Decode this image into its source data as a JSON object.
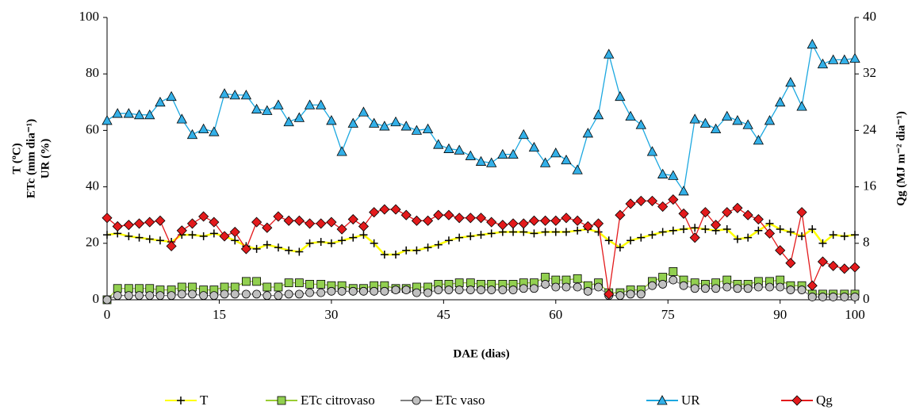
{
  "chart_data": {
    "type": "line",
    "x_label": "DAE (dias)",
    "y_label_lines": [
      "T (ºC)",
      "ETc (mm dia⁻¹)",
      "UR (%)"
    ],
    "y2_label": "Qg (MJ m⁻² dia⁻¹)",
    "x": [
      0,
      1.4,
      2.9,
      4.3,
      5.7,
      7.1,
      8.6,
      10,
      11.4,
      12.9,
      14.3,
      15.7,
      17.1,
      18.6,
      20,
      21.4,
      22.9,
      24.3,
      25.7,
      27.1,
      28.6,
      30,
      31.4,
      32.9,
      34.3,
      35.7,
      37.1,
      38.6,
      40,
      41.4,
      42.9,
      44.3,
      45.7,
      47.1,
      48.6,
      50,
      51.4,
      52.9,
      54.3,
      55.7,
      57.1,
      58.6,
      60,
      61.4,
      62.9,
      64.3,
      65.7,
      67.1,
      68.6,
      70,
      71.4,
      72.9,
      74.3,
      75.7,
      77.1,
      78.6,
      80,
      81.4,
      82.9,
      84.3,
      85.7,
      87.1,
      88.6,
      90,
      91.4,
      92.9,
      94.3,
      95.7,
      97.1,
      98.6,
      100
    ],
    "xlim": [
      0,
      100
    ],
    "xticks": [
      0,
      15,
      30,
      45,
      60,
      75,
      90,
      100
    ],
    "ylim": [
      0,
      100
    ],
    "yticks": [
      0,
      20,
      40,
      60,
      80,
      100
    ],
    "y2lim": [
      0,
      40
    ],
    "y2ticks": [
      0,
      8,
      16,
      24,
      32,
      40
    ],
    "legend": "bottom",
    "series": [
      {
        "name": "T",
        "color": "#ffff00",
        "marker": "plus",
        "marker_fill": "#000000",
        "values": [
          23,
          23.5,
          22.5,
          22,
          21.5,
          21,
          20.5,
          23,
          23,
          22.5,
          23.5,
          22.5,
          21,
          19,
          18,
          19.5,
          18.5,
          17.5,
          17,
          20,
          20.5,
          20,
          21,
          22,
          23,
          20,
          16,
          16,
          17.5,
          17.5,
          18.5,
          19.5,
          21,
          22,
          22.5,
          23,
          23.5,
          24,
          24,
          24,
          23.5,
          24,
          24,
          24,
          24.5,
          25,
          24,
          21,
          18.5,
          21,
          22,
          23,
          24,
          24.5,
          25,
          25.5,
          25,
          24.5,
          25,
          21.5,
          22,
          24.5,
          27,
          25,
          24,
          22.5,
          25,
          20,
          23,
          22.5,
          23
        ]
      },
      {
        "name": "ETc citrovaso",
        "color": "#99cc33",
        "marker": "square",
        "marker_fill": "#92d050",
        "values": [
          0,
          4,
          4,
          4,
          4,
          3.5,
          3.5,
          4.5,
          4.5,
          3.5,
          3.5,
          4.5,
          4.5,
          6.5,
          6.5,
          4.5,
          4.5,
          6,
          6,
          5.5,
          5.5,
          5,
          5,
          4,
          4,
          5,
          5,
          4,
          4,
          4.5,
          4.5,
          5.5,
          5.5,
          6,
          6,
          5.5,
          5.5,
          5.5,
          5.5,
          6,
          6,
          8,
          7,
          7,
          7.5,
          5,
          6,
          2.5,
          2.5,
          3.5,
          3.5,
          6.5,
          8,
          10,
          7,
          6,
          5.5,
          6,
          7,
          5.5,
          5.5,
          6.5,
          6.5,
          7,
          5,
          5,
          2,
          2,
          2,
          2,
          2
        ]
      },
      {
        "name": "ETc vaso",
        "color": "#808080",
        "marker": "circle",
        "marker_fill": "#c0c0c0",
        "values": [
          0,
          1.5,
          1.5,
          1.5,
          1.5,
          1.5,
          1.5,
          2,
          2,
          1.5,
          1.5,
          2,
          2,
          2,
          2,
          1.5,
          1.5,
          2,
          2,
          2.5,
          2.5,
          3,
          3,
          3,
          3,
          3,
          3,
          3.5,
          3.5,
          2.5,
          2.5,
          3.5,
          3.5,
          3.5,
          3.5,
          3.5,
          3.5,
          3.5,
          3.5,
          4,
          4,
          5.5,
          4.5,
          4.5,
          4.5,
          3,
          4.5,
          1.5,
          1.5,
          2,
          2,
          5,
          5.5,
          7,
          5,
          4,
          4,
          4,
          4.5,
          4,
          4,
          4.5,
          4.5,
          4.5,
          3.5,
          3.5,
          1,
          1,
          1,
          1,
          1
        ]
      },
      {
        "name": "UR",
        "color": "#1ca8e0",
        "marker": "triangle",
        "marker_fill": "#33b0e8",
        "values": [
          63.5,
          66,
          66,
          65.5,
          65.5,
          70,
          72,
          64,
          58.5,
          60.5,
          59.5,
          73,
          72.5,
          72.5,
          67.5,
          67,
          69,
          63,
          64.5,
          69,
          69,
          63.5,
          52.5,
          62.5,
          66.5,
          62.5,
          61.5,
          63,
          61.5,
          60,
          60.5,
          55,
          53.5,
          53,
          51,
          49,
          48.5,
          51.5,
          51.5,
          58.5,
          54,
          48.5,
          52,
          49.5,
          46,
          59,
          65.5,
          87,
          72,
          65,
          62,
          52.5,
          44.5,
          44,
          38.5,
          64,
          62.5,
          60.5,
          65,
          63.5,
          62,
          56.5,
          63.5,
          70,
          77,
          68.5,
          90.5,
          83.5,
          85,
          85,
          85.5
        ]
      },
      {
        "name": "Qg",
        "color": "#e31a1c",
        "marker": "diamond",
        "marker_fill": "#e31a1c",
        "axis": "y2",
        "values": [
          11.6,
          10.4,
          10.6,
          10.8,
          11,
          11.2,
          7.6,
          9.8,
          10.8,
          11.8,
          11,
          9,
          9.6,
          7.2,
          11,
          10.2,
          11.8,
          11.2,
          11.2,
          10.8,
          10.8,
          11,
          10,
          11.4,
          10.4,
          12.4,
          12.8,
          12.8,
          12,
          11.2,
          11.2,
          12,
          12,
          11.6,
          11.6,
          11.6,
          11,
          10.6,
          10.8,
          10.8,
          11.2,
          11.2,
          11.2,
          11.6,
          11.2,
          10.4,
          10.8,
          0.8,
          12,
          13.6,
          14,
          14,
          13.2,
          14.2,
          12.2,
          8.8,
          12.4,
          10.6,
          12.4,
          13,
          12,
          11.4,
          9.4,
          7,
          5.2,
          12.4,
          2,
          5.4,
          4.8,
          4.4,
          4.6
        ]
      }
    ]
  }
}
